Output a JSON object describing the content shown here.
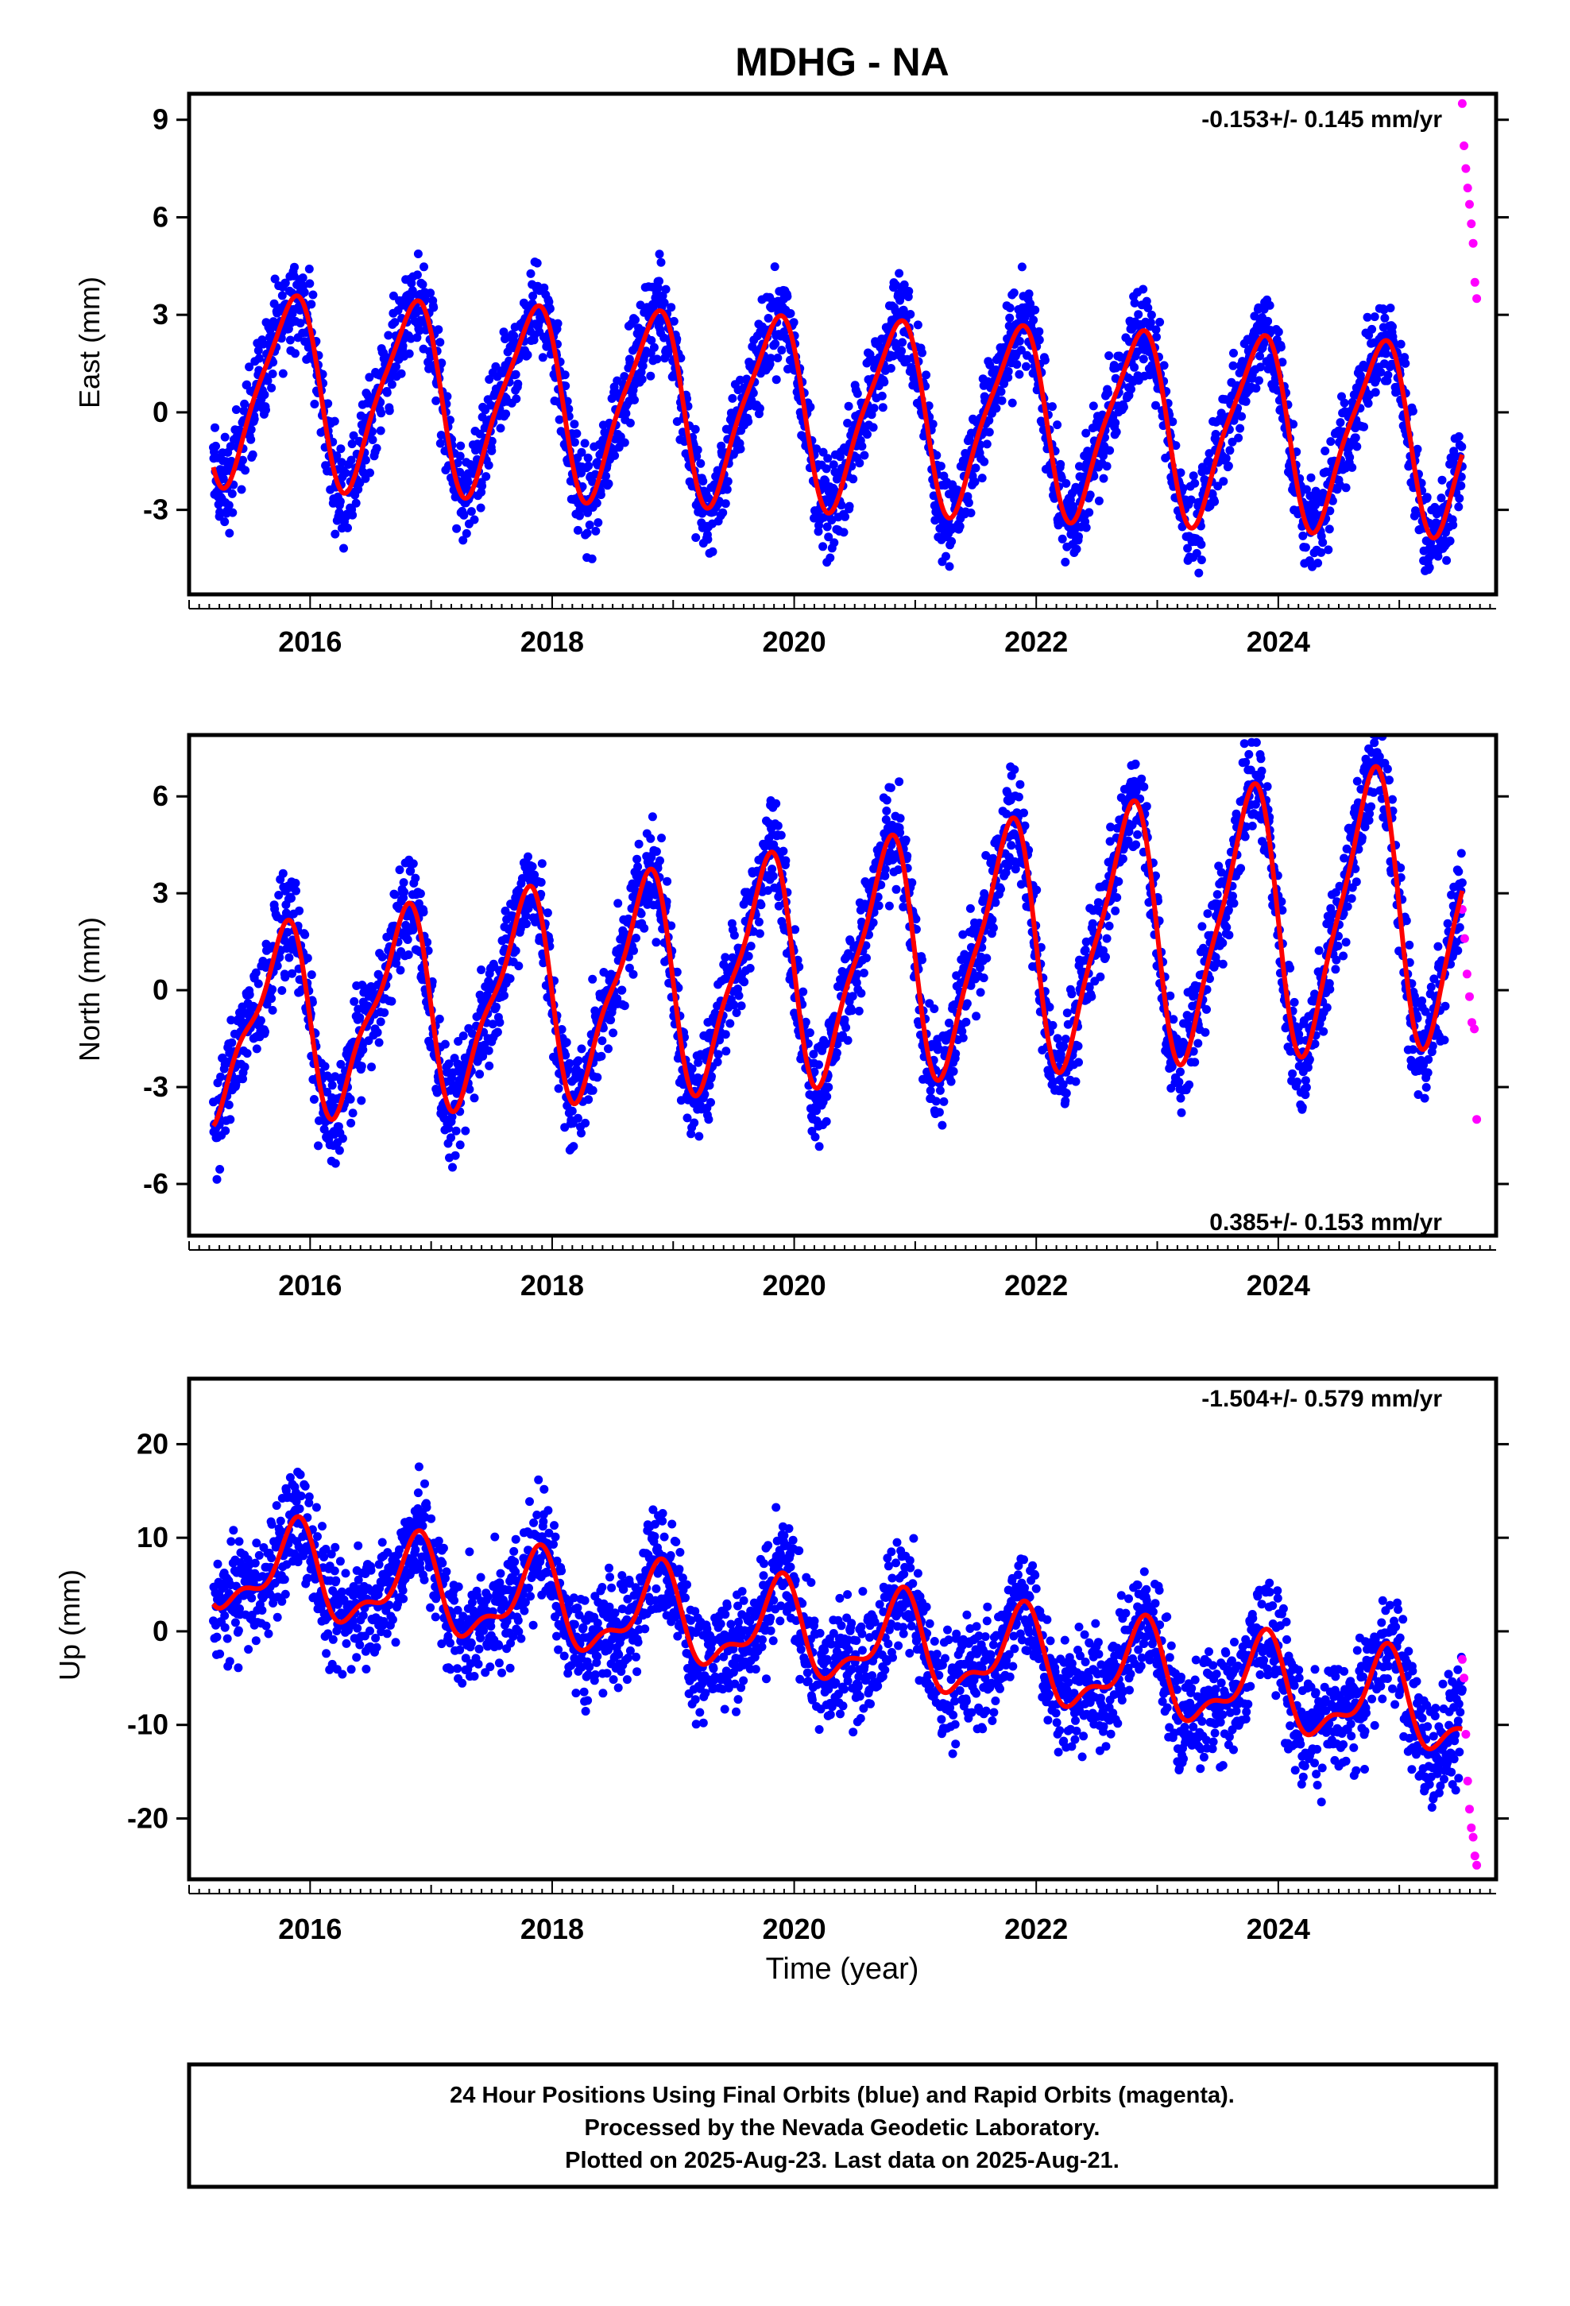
{
  "title": "MDHG - NA",
  "colors": {
    "final_orbits": "#0000ff",
    "rapid_orbits": "#ff00ff",
    "model_fit": "#ff0000",
    "frame": "#000000",
    "background": "#ffffff"
  },
  "x_axis": {
    "label": "Time (year)",
    "range": [
      2015.0,
      2025.8
    ],
    "tick_labels": [
      "2016",
      "2018",
      "2020",
      "2022",
      "2024"
    ]
  },
  "chart_data": [
    {
      "type": "scatter",
      "ylabel": "East (mm)",
      "ylim": [
        -5.6,
        9.8
      ],
      "yticks": [
        9,
        6,
        3,
        0,
        -3
      ],
      "xlim": [
        2015.0,
        2025.8
      ],
      "rate_text": "-0.153+/- 0.145 mm/yr",
      "rate_position": "top-right",
      "fit": {
        "offset": 0.8,
        "trend": -0.153,
        "amp1": 2.8,
        "phase1": 0.58,
        "amp2": 0.6,
        "phase2": 0.35,
        "amp_growth": 0.0,
        "start_value": -0.6
      },
      "scatter": {
        "noise": 1.0,
        "final_range": [
          2015.2,
          2025.52
        ],
        "rapid_range": [
          2025.52,
          2025.64
        ]
      },
      "series": [
        {
          "name": "Final Orbits",
          "color": "#0000ff"
        },
        {
          "name": "Rapid Orbits",
          "color": "#ff00ff",
          "values_sample": [
            9.5,
            8.2,
            7.5,
            6.9,
            6.4,
            5.8,
            5.2,
            4.0,
            3.5
          ]
        }
      ]
    },
    {
      "type": "scatter",
      "ylabel": "North (mm)",
      "ylim": [
        -7.6,
        7.9
      ],
      "yticks": [
        6,
        3,
        0,
        -3,
        -6
      ],
      "xlim": [
        2015.0,
        2025.8
      ],
      "rate_text": "0.385+/- 0.153 mm/yr",
      "rate_position": "bottom-right",
      "fit": {
        "offset": -1.2,
        "trend": 0.385,
        "amp1": 2.6,
        "phase1": 0.5,
        "amp2": 0.9,
        "phase2": 0.25,
        "amp_growth": 0.06,
        "start_value": -2.7
      },
      "scatter": {
        "noise": 1.1,
        "final_range": [
          2015.2,
          2025.52
        ],
        "rapid_range": [
          2025.52,
          2025.64
        ]
      },
      "series": [
        {
          "name": "Final Orbits",
          "color": "#0000ff"
        },
        {
          "name": "Rapid Orbits",
          "color": "#ff00ff",
          "values_sample": [
            2.5,
            1.6,
            0.5,
            -0.2,
            -1.0,
            -1.2,
            -4.0
          ]
        }
      ]
    },
    {
      "type": "scatter",
      "ylabel": "Up (mm)",
      "ylim": [
        -26.5,
        27.0
      ],
      "yticks": [
        20,
        10,
        0,
        -10,
        -20
      ],
      "xlim": [
        2015.0,
        2025.8
      ],
      "rate_text": "-1.504+/- 0.579 mm/yr",
      "rate_position": "top-right",
      "fit": {
        "offset": 7.0,
        "trend": -1.504,
        "amp1": 4.5,
        "phase1": 0.62,
        "amp2": 2.0,
        "phase2": 0.3,
        "amp_growth": 0.0,
        "start_value": 4.0
      },
      "scatter": {
        "noise": 4.2,
        "final_range": [
          2015.2,
          2025.52
        ],
        "rapid_range": [
          2025.52,
          2025.64
        ]
      },
      "series": [
        {
          "name": "Final Orbits",
          "color": "#0000ff"
        },
        {
          "name": "Rapid Orbits",
          "color": "#ff00ff",
          "values_sample": [
            -3,
            -5,
            -11,
            -16,
            -19,
            -21,
            -22,
            -24,
            -25
          ]
        }
      ]
    }
  ],
  "footer": {
    "line1": "24 Hour Positions Using Final Orbits (blue) and Rapid Orbits (magenta).",
    "line2": "Processed by the Nevada Geodetic Laboratory.",
    "line3": "Plotted on 2025-Aug-23. Last data on 2025-Aug-21."
  }
}
